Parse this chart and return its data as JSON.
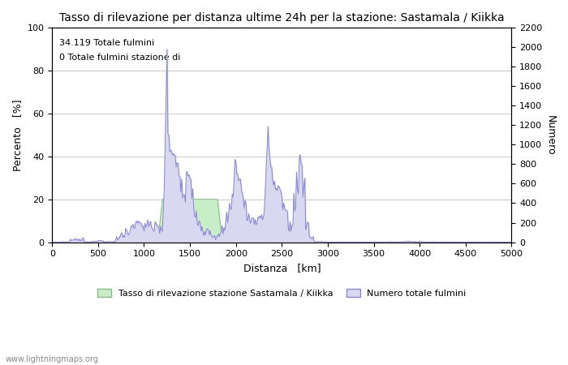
{
  "title": "Tasso di rilevazione per distanza ultime 24h per la stazione: Sastamala / Kiikka",
  "xlabel": "Distanza   [km]",
  "ylabel_left": "Percento   [%]",
  "ylabel_right": "Numero",
  "annotation_line1": "34.119 Totale fulmini",
  "annotation_line2": "0 Totale fulmini stazione di",
  "xlim": [
    0,
    5000
  ],
  "ylim_left": [
    0,
    100
  ],
  "ylim_right": [
    0,
    2200
  ],
  "xticks": [
    0,
    500,
    1000,
    1500,
    2000,
    2500,
    3000,
    3500,
    4000,
    4500,
    5000
  ],
  "yticks_left": [
    0,
    20,
    40,
    60,
    80,
    100
  ],
  "yticks_right": [
    0,
    200,
    400,
    600,
    800,
    1000,
    1200,
    1400,
    1600,
    1800,
    2000,
    2200
  ],
  "legend_label_green": "Tasso di rilevazione stazione Sastamala / Kiikka",
  "legend_label_blue": "Numero totale fulmini",
  "watermark": "www.lightningmaps.org",
  "bg_color": "#ffffff",
  "grid_color": "#c8c8c8",
  "fill_green_color": "#c8eec8",
  "fill_blue_color": "#d8d8f0",
  "line_blue_color": "#8888cc",
  "line_green_color": "#88bb88",
  "title_fontsize": 10,
  "axis_fontsize": 9,
  "tick_fontsize": 8
}
